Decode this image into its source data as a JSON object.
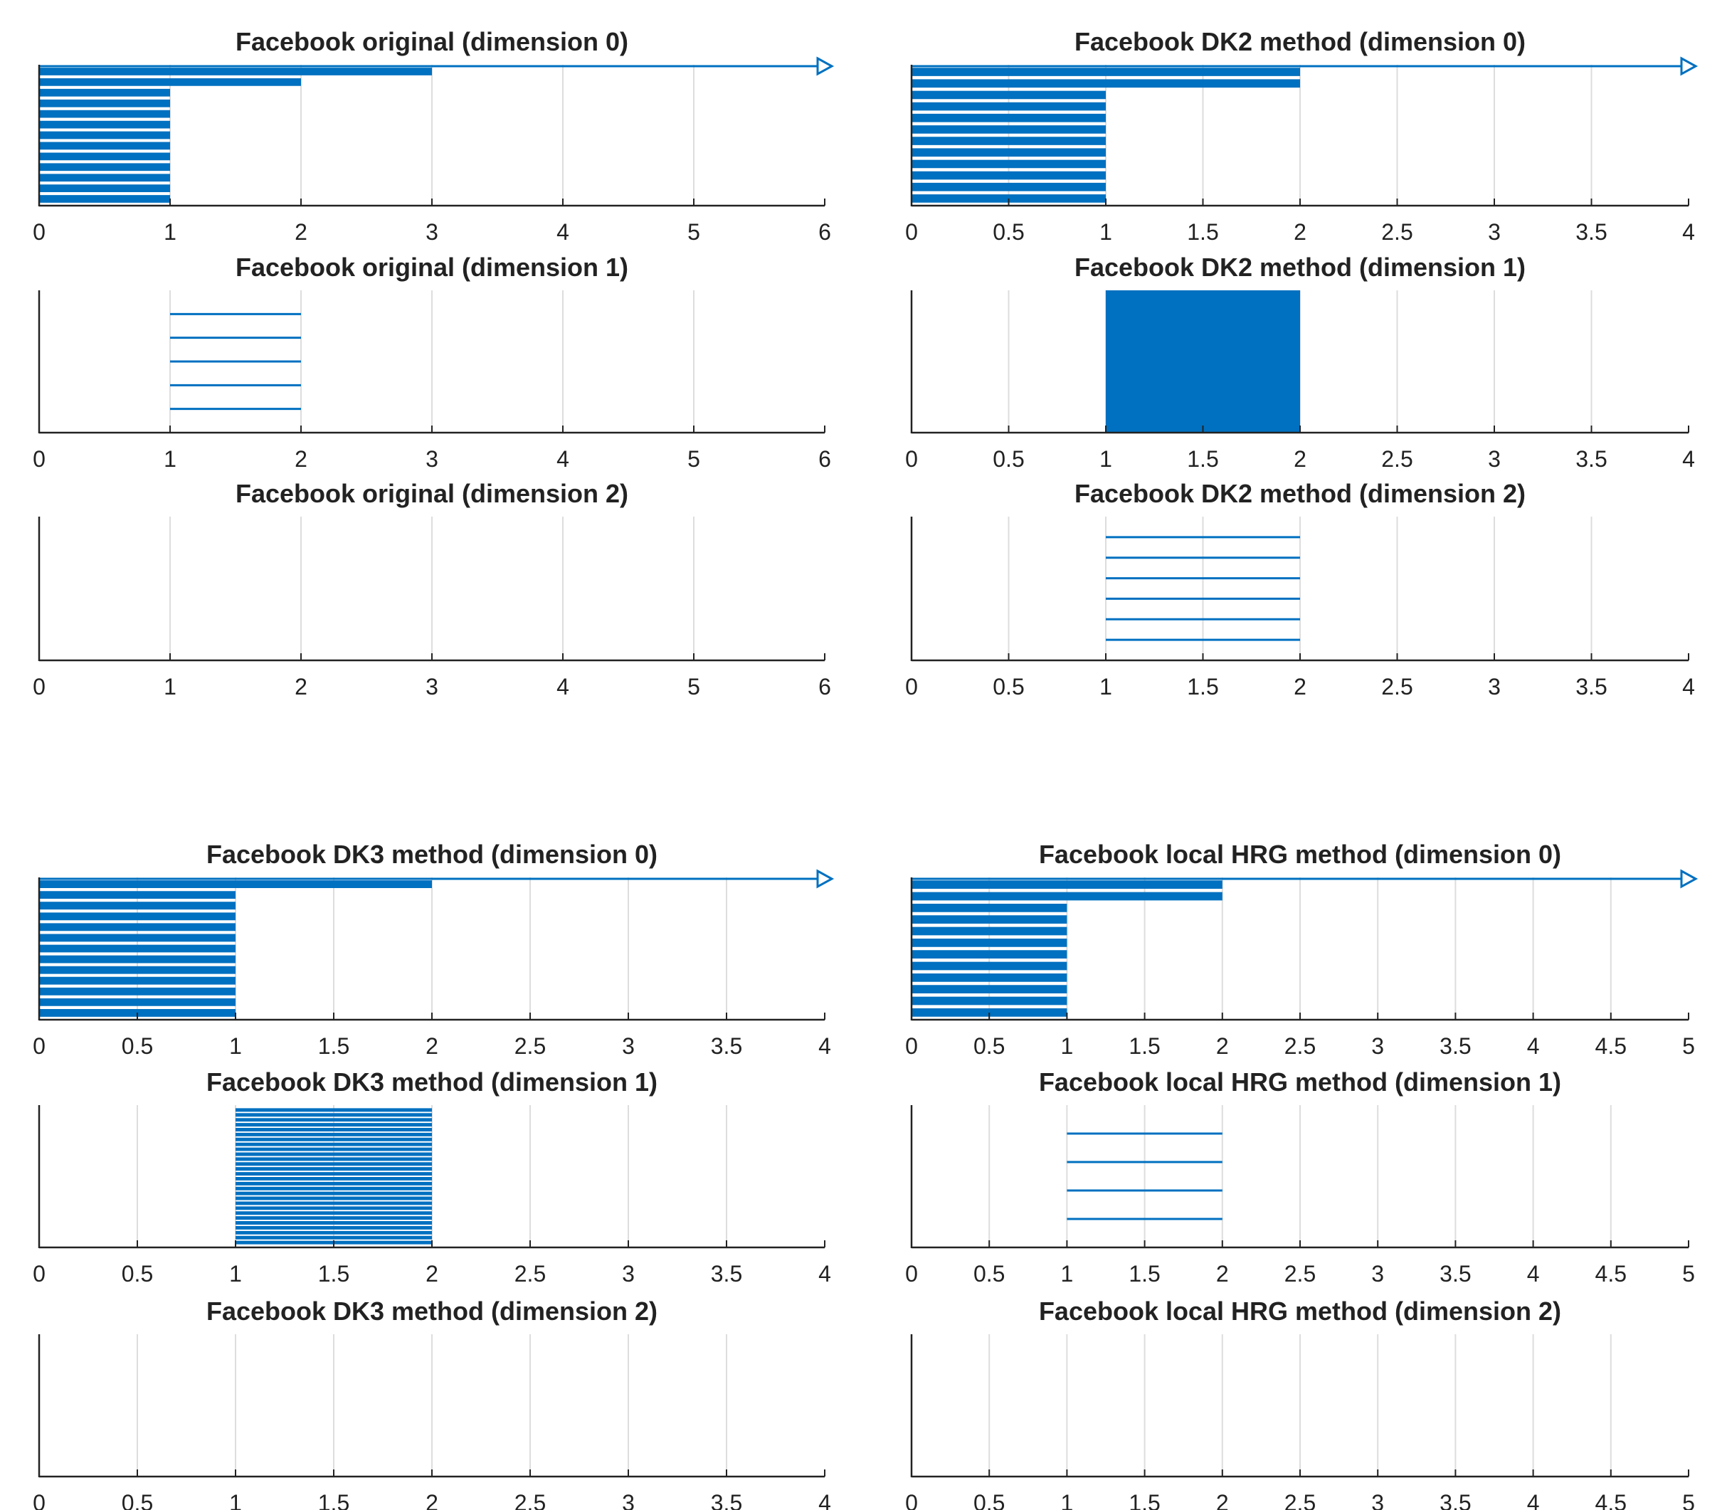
{
  "colors": {
    "bar": "#0070C0",
    "grid": "#DDDDDD",
    "axis": "#222222",
    "text": "#222222"
  },
  "chart_data": [
    {
      "type": "barcode",
      "title": "Facebook original (dimension 0)",
      "xlim": [
        0,
        6
      ],
      "xticks": [
        "0",
        "1",
        "2",
        "3",
        "4",
        "5",
        "6"
      ],
      "grid": true,
      "arrow": true,
      "bars": [
        {
          "birth": 0,
          "death": 1,
          "count": 11
        },
        {
          "birth": 0,
          "death": 2,
          "count": 1
        },
        {
          "birth": 0,
          "death": 3,
          "count": 1
        }
      ]
    },
    {
      "type": "barcode",
      "title": "Facebook DK2 method (dimension 0)",
      "xlim": [
        0,
        4
      ],
      "xticks": [
        "0",
        "0.5",
        "1",
        "1.5",
        "2",
        "2.5",
        "3",
        "3.5",
        "4"
      ],
      "grid": true,
      "arrow": true,
      "bars": [
        {
          "birth": 0,
          "death": 1,
          "count": 10
        },
        {
          "birth": 0,
          "death": 2,
          "count": 2
        }
      ]
    },
    {
      "type": "barcode",
      "title": "Facebook original (dimension 1)",
      "xlim": [
        0,
        6
      ],
      "xticks": [
        "0",
        "1",
        "2",
        "3",
        "4",
        "5",
        "6"
      ],
      "grid": true,
      "arrow": false,
      "bars": [
        {
          "birth": 1,
          "death": 2,
          "count": 5
        }
      ]
    },
    {
      "type": "barcode",
      "title": "Facebook DK2 method (dimension 1)",
      "xlim": [
        0,
        4
      ],
      "xticks": [
        "0",
        "0.5",
        "1",
        "1.5",
        "2",
        "2.5",
        "3",
        "3.5",
        "4"
      ],
      "grid": true,
      "arrow": false,
      "bars": [
        {
          "birth": 1,
          "death": 2,
          "count": 40,
          "solid": true
        }
      ]
    },
    {
      "type": "barcode",
      "title": "Facebook original (dimension 2)",
      "xlim": [
        0,
        6
      ],
      "xticks": [
        "0",
        "1",
        "2",
        "3",
        "4",
        "5",
        "6"
      ],
      "grid": true,
      "arrow": false,
      "bars": []
    },
    {
      "type": "barcode",
      "title": "Facebook DK2 method (dimension 2)",
      "xlim": [
        0,
        4
      ],
      "xticks": [
        "0",
        "0.5",
        "1",
        "1.5",
        "2",
        "2.5",
        "3",
        "3.5",
        "4"
      ],
      "grid": true,
      "arrow": false,
      "bars": [
        {
          "birth": 1,
          "death": 2,
          "count": 6
        }
      ]
    },
    {
      "type": "barcode",
      "title": "Facebook DK3 method (dimension 0)",
      "xlim": [
        0,
        4
      ],
      "xticks": [
        "0",
        "0.5",
        "1",
        "1.5",
        "2",
        "2.5",
        "3",
        "3.5",
        "4"
      ],
      "grid": true,
      "arrow": true,
      "bars": [
        {
          "birth": 0,
          "death": 1,
          "count": 12
        },
        {
          "birth": 0,
          "death": 2,
          "count": 1
        }
      ]
    },
    {
      "type": "barcode",
      "title": "Facebook local HRG method (dimension 0)",
      "xlim": [
        0,
        5
      ],
      "xticks": [
        "0",
        "0.5",
        "1",
        "1.5",
        "2",
        "2.5",
        "3",
        "3.5",
        "4",
        "4.5",
        "5"
      ],
      "grid": true,
      "arrow": true,
      "bars": [
        {
          "birth": 0,
          "death": 1,
          "count": 10
        },
        {
          "birth": 0,
          "death": 2,
          "count": 2
        }
      ]
    },
    {
      "type": "barcode",
      "title": "Facebook DK3 method (dimension 1)",
      "xlim": [
        0,
        4
      ],
      "xticks": [
        "0",
        "0.5",
        "1",
        "1.5",
        "2",
        "2.5",
        "3",
        "3.5",
        "4"
      ],
      "grid": true,
      "arrow": false,
      "bars": [
        {
          "birth": 1,
          "death": 2,
          "count": 28
        }
      ]
    },
    {
      "type": "barcode",
      "title": "Facebook local HRG method (dimension 1)",
      "xlim": [
        0,
        5
      ],
      "xticks": [
        "0",
        "0.5",
        "1",
        "1.5",
        "2",
        "2.5",
        "3",
        "3.5",
        "4",
        "4.5",
        "5"
      ],
      "grid": true,
      "arrow": false,
      "bars": [
        {
          "birth": 1,
          "death": 2,
          "count": 4
        }
      ]
    },
    {
      "type": "barcode",
      "title": "Facebook DK3 method (dimension 2)",
      "xlim": [
        0,
        4
      ],
      "xticks": [
        "0",
        "0.5",
        "1",
        "1.5",
        "2",
        "2.5",
        "3",
        "3.5",
        "4"
      ],
      "grid": true,
      "arrow": false,
      "bars": []
    },
    {
      "type": "barcode",
      "title": "Facebook local HRG method (dimension 2)",
      "xlim": [
        0,
        5
      ],
      "xticks": [
        "0",
        "0.5",
        "1",
        "1.5",
        "2",
        "2.5",
        "3",
        "3.5",
        "4",
        "4.5",
        "5"
      ],
      "grid": true,
      "arrow": false,
      "bars": []
    }
  ]
}
